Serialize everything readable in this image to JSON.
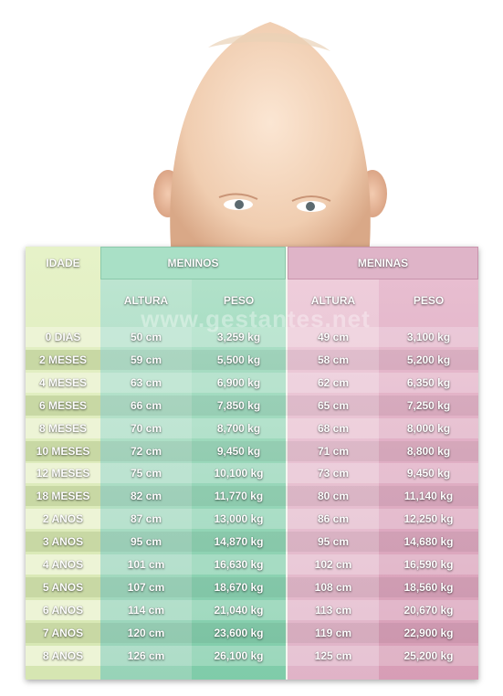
{
  "header": {
    "idade": "IDADE",
    "meninos": "MENINOS",
    "meninas": "MENINAS"
  },
  "subheader": {
    "altura": "ALTURA",
    "peso": "PESO"
  },
  "watermark": "www.gestantes.net",
  "rows": [
    {
      "idade": "0 DIAS",
      "m_altura": "50 cm",
      "m_peso": "3,259 kg",
      "f_altura": "49 cm",
      "f_peso": "3,100 kg"
    },
    {
      "idade": "2 MESES",
      "m_altura": "59 cm",
      "m_peso": "5,500 kg",
      "f_altura": "58 cm",
      "f_peso": "5,200 kg"
    },
    {
      "idade": "4 MESES",
      "m_altura": "63 cm",
      "m_peso": "6,900 kg",
      "f_altura": "62 cm",
      "f_peso": "6,350 kg"
    },
    {
      "idade": "6 MESES",
      "m_altura": "66 cm",
      "m_peso": "7,850 kg",
      "f_altura": "65 cm",
      "f_peso": "7,250 kg"
    },
    {
      "idade": "8 MESES",
      "m_altura": "70 cm",
      "m_peso": "8,700 kg",
      "f_altura": "68 cm",
      "f_peso": "8,000 kg"
    },
    {
      "idade": "10 MESES",
      "m_altura": "72 cm",
      "m_peso": "9,450 kg",
      "f_altura": "71 cm",
      "f_peso": "8,800 kg"
    },
    {
      "idade": "12 MESES",
      "m_altura": "75 cm",
      "m_peso": "10,100 kg",
      "f_altura": "73 cm",
      "f_peso": "9,450 kg"
    },
    {
      "idade": "18 MESES",
      "m_altura": "82 cm",
      "m_peso": "11,770 kg",
      "f_altura": "80 cm",
      "f_peso": "11,140 kg"
    },
    {
      "idade": "2 ANOS",
      "m_altura": "87 cm",
      "m_peso": "13,000 kg",
      "f_altura": "86 cm",
      "f_peso": "12,250 kg"
    },
    {
      "idade": "3 ANOS",
      "m_altura": "95 cm",
      "m_peso": "14,870 kg",
      "f_altura": "95 cm",
      "f_peso": "14,680 kg"
    },
    {
      "idade": "4 ANOS",
      "m_altura": "101 cm",
      "m_peso": "16,630 kg",
      "f_altura": "102 cm",
      "f_peso": "16,590 kg"
    },
    {
      "idade": "5 ANOS",
      "m_altura": "107 cm",
      "m_peso": "18,670 kg",
      "f_altura": "108 cm",
      "f_peso": "18,560 kg"
    },
    {
      "idade": "6 ANOS",
      "m_altura": "114 cm",
      "m_peso": "21,040 kg",
      "f_altura": "113 cm",
      "f_peso": "20,670 kg"
    },
    {
      "idade": "7 ANOS",
      "m_altura": "120 cm",
      "m_peso": "23,600 kg",
      "f_altura": "119 cm",
      "f_peso": "22,900 kg"
    },
    {
      "idade": "8 ANOS",
      "m_altura": "126 cm",
      "m_peso": "26,100 kg",
      "f_altura": "125 cm",
      "f_peso": "25,200 kg"
    }
  ]
}
